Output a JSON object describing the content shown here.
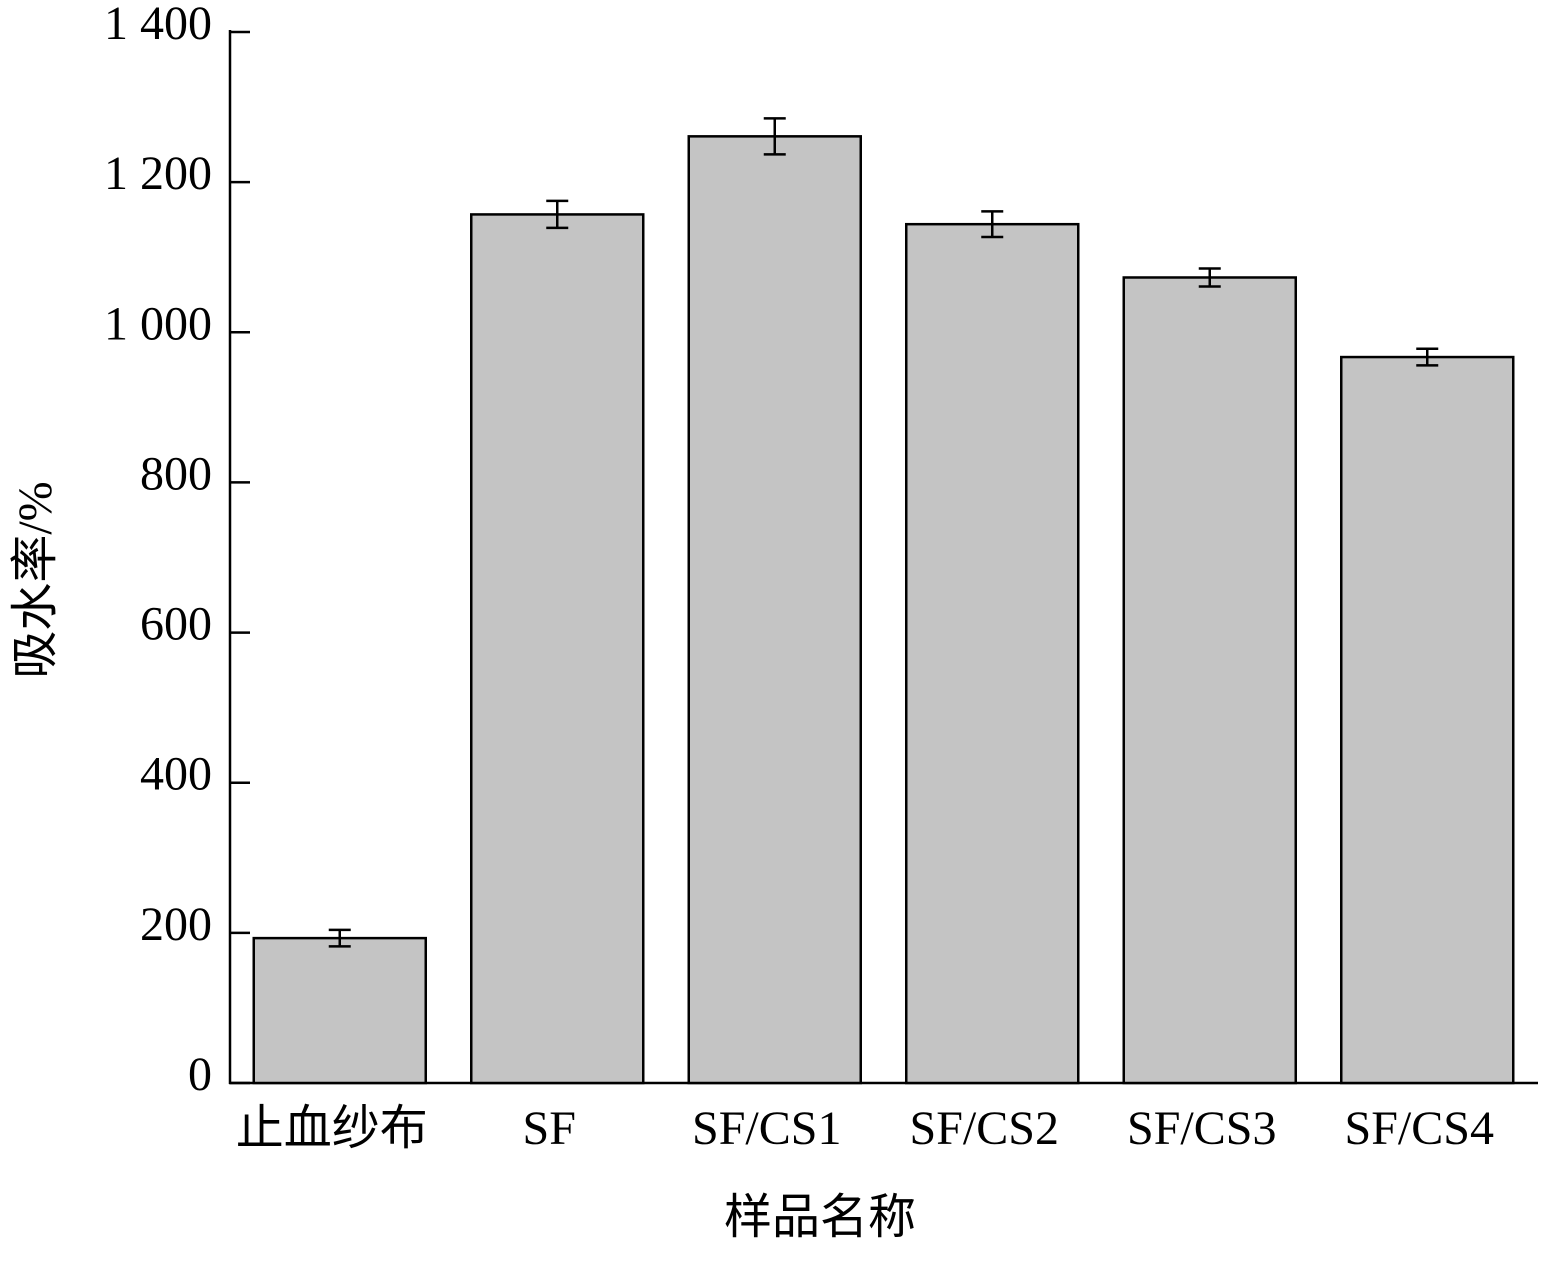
{
  "chart_data": {
    "type": "bar",
    "x_label": "样品名称",
    "y_label": "吸水率/%",
    "categories": [
      "止血纱布",
      "SF",
      "SF/CS1",
      "SF/CS2",
      "SF/CS3",
      "SF/CS4"
    ],
    "values": [
      193,
      1157,
      1261,
      1144,
      1073,
      967
    ],
    "errors": [
      11,
      18,
      24,
      17,
      12,
      11
    ],
    "color": "#c4c4c4",
    "ylim": [
      0,
      1400
    ],
    "yticks": [
      0,
      200,
      400,
      600,
      800,
      {
        "value": 1000,
        "label": "1 000"
      },
      {
        "value": 1200,
        "label": "1 200"
      },
      {
        "value": 1400,
        "label": "1 400"
      }
    ]
  }
}
